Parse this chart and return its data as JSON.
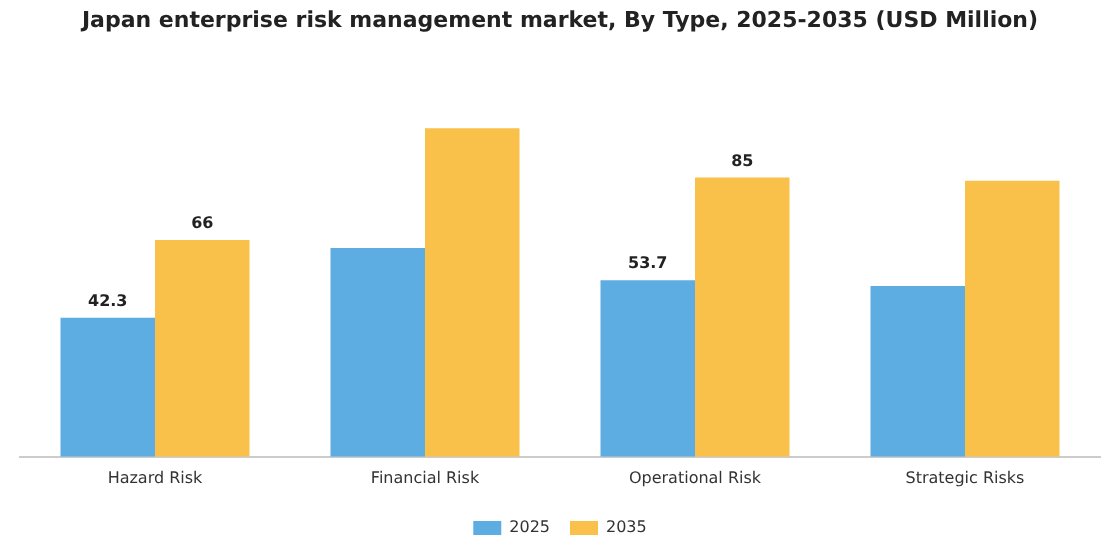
{
  "chart_data": {
    "type": "bar",
    "title": "Japan enterprise risk management market, By Type, 2025-2035 (USD Million)",
    "categories": [
      "Hazard Risk",
      "Financial Risk",
      "Operational Risk",
      "Strategic Risks"
    ],
    "series": [
      {
        "name": "2025",
        "color": "#5dade2",
        "values": [
          42.3,
          63.5,
          53.7,
          52
        ],
        "value_labels": [
          "42.3",
          null,
          "53.7",
          null
        ]
      },
      {
        "name": "2035",
        "color": "#f9c04a",
        "values": [
          66,
          100,
          85,
          84
        ],
        "value_labels": [
          "66",
          null,
          "85",
          null
        ]
      }
    ],
    "grid": false,
    "legend": "bottom"
  }
}
